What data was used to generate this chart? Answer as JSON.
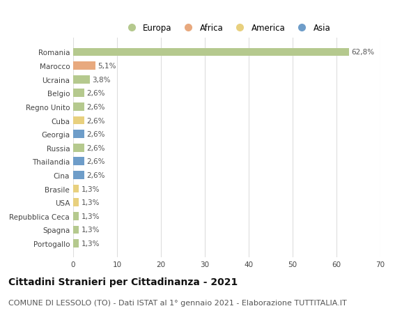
{
  "countries": [
    "Romania",
    "Marocco",
    "Ucraina",
    "Belgio",
    "Regno Unito",
    "Cuba",
    "Georgia",
    "Russia",
    "Thailandia",
    "Cina",
    "Brasile",
    "USA",
    "Repubblica Ceca",
    "Spagna",
    "Portogallo"
  ],
  "values": [
    62.8,
    5.1,
    3.8,
    2.6,
    2.6,
    2.6,
    2.6,
    2.6,
    2.6,
    2.6,
    1.3,
    1.3,
    1.3,
    1.3,
    1.3
  ],
  "labels": [
    "62,8%",
    "5,1%",
    "3,8%",
    "2,6%",
    "2,6%",
    "2,6%",
    "2,6%",
    "2,6%",
    "2,6%",
    "2,6%",
    "1,3%",
    "1,3%",
    "1,3%",
    "1,3%",
    "1,3%"
  ],
  "continents": [
    "Europa",
    "Africa",
    "Europa",
    "Europa",
    "Europa",
    "America",
    "Asia",
    "Europa",
    "Asia",
    "Asia",
    "America",
    "America",
    "Europa",
    "Europa",
    "Europa"
  ],
  "continent_colors": {
    "Europa": "#b5c98e",
    "Africa": "#e8a97e",
    "America": "#e8d07e",
    "Asia": "#6e9dc9"
  },
  "legend_order": [
    "Europa",
    "Africa",
    "America",
    "Asia"
  ],
  "xlim": [
    0,
    70
  ],
  "xticks": [
    0,
    10,
    20,
    30,
    40,
    50,
    60,
    70
  ],
  "title": "Cittadini Stranieri per Cittadinanza - 2021",
  "subtitle": "COMUNE DI LESSOLO (TO) - Dati ISTAT al 1° gennaio 2021 - Elaborazione TUTTITALIA.IT",
  "bg_color": "#ffffff",
  "grid_color": "#dddddd",
  "bar_height": 0.6,
  "title_fontsize": 10,
  "subtitle_fontsize": 8,
  "label_fontsize": 7.5,
  "tick_fontsize": 7.5,
  "legend_fontsize": 8.5
}
